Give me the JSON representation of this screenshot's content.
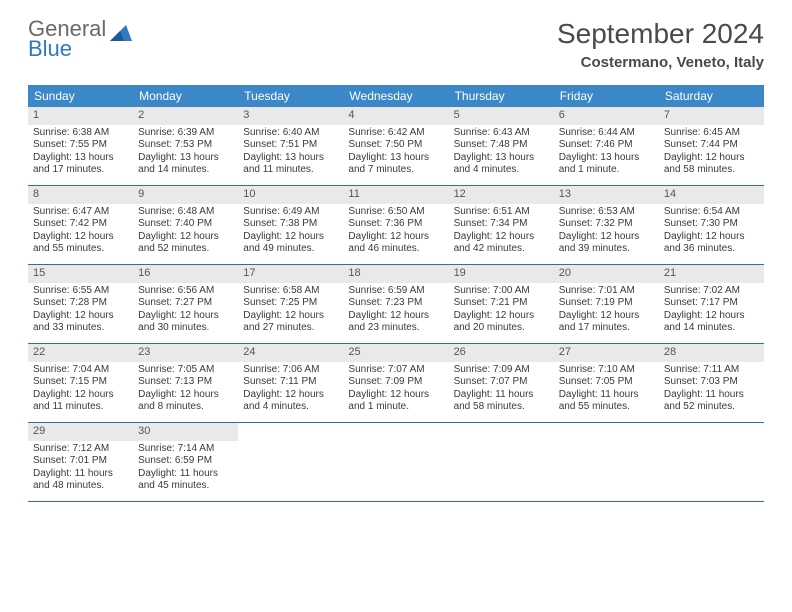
{
  "logo": {
    "line1": "General",
    "line2": "Blue"
  },
  "title": "September 2024",
  "location": "Costermano, Veneto, Italy",
  "colors": {
    "header_bg": "#3b87c8",
    "header_text": "#ffffff",
    "daynum_bg": "#e9e9e9",
    "week_border": "#2f6fa8",
    "logo_gray": "#6a6a6a",
    "logo_blue": "#2f7ac0",
    "body_text": "#3a3a3a"
  },
  "day_names": [
    "Sunday",
    "Monday",
    "Tuesday",
    "Wednesday",
    "Thursday",
    "Friday",
    "Saturday"
  ],
  "days": [
    {
      "n": "1",
      "sr": "6:38 AM",
      "ss": "7:55 PM",
      "dl": "13 hours and 17 minutes."
    },
    {
      "n": "2",
      "sr": "6:39 AM",
      "ss": "7:53 PM",
      "dl": "13 hours and 14 minutes."
    },
    {
      "n": "3",
      "sr": "6:40 AM",
      "ss": "7:51 PM",
      "dl": "13 hours and 11 minutes."
    },
    {
      "n": "4",
      "sr": "6:42 AM",
      "ss": "7:50 PM",
      "dl": "13 hours and 7 minutes."
    },
    {
      "n": "5",
      "sr": "6:43 AM",
      "ss": "7:48 PM",
      "dl": "13 hours and 4 minutes."
    },
    {
      "n": "6",
      "sr": "6:44 AM",
      "ss": "7:46 PM",
      "dl": "13 hours and 1 minute."
    },
    {
      "n": "7",
      "sr": "6:45 AM",
      "ss": "7:44 PM",
      "dl": "12 hours and 58 minutes."
    },
    {
      "n": "8",
      "sr": "6:47 AM",
      "ss": "7:42 PM",
      "dl": "12 hours and 55 minutes."
    },
    {
      "n": "9",
      "sr": "6:48 AM",
      "ss": "7:40 PM",
      "dl": "12 hours and 52 minutes."
    },
    {
      "n": "10",
      "sr": "6:49 AM",
      "ss": "7:38 PM",
      "dl": "12 hours and 49 minutes."
    },
    {
      "n": "11",
      "sr": "6:50 AM",
      "ss": "7:36 PM",
      "dl": "12 hours and 46 minutes."
    },
    {
      "n": "12",
      "sr": "6:51 AM",
      "ss": "7:34 PM",
      "dl": "12 hours and 42 minutes."
    },
    {
      "n": "13",
      "sr": "6:53 AM",
      "ss": "7:32 PM",
      "dl": "12 hours and 39 minutes."
    },
    {
      "n": "14",
      "sr": "6:54 AM",
      "ss": "7:30 PM",
      "dl": "12 hours and 36 minutes."
    },
    {
      "n": "15",
      "sr": "6:55 AM",
      "ss": "7:28 PM",
      "dl": "12 hours and 33 minutes."
    },
    {
      "n": "16",
      "sr": "6:56 AM",
      "ss": "7:27 PM",
      "dl": "12 hours and 30 minutes."
    },
    {
      "n": "17",
      "sr": "6:58 AM",
      "ss": "7:25 PM",
      "dl": "12 hours and 27 minutes."
    },
    {
      "n": "18",
      "sr": "6:59 AM",
      "ss": "7:23 PM",
      "dl": "12 hours and 23 minutes."
    },
    {
      "n": "19",
      "sr": "7:00 AM",
      "ss": "7:21 PM",
      "dl": "12 hours and 20 minutes."
    },
    {
      "n": "20",
      "sr": "7:01 AM",
      "ss": "7:19 PM",
      "dl": "12 hours and 17 minutes."
    },
    {
      "n": "21",
      "sr": "7:02 AM",
      "ss": "7:17 PM",
      "dl": "12 hours and 14 minutes."
    },
    {
      "n": "22",
      "sr": "7:04 AM",
      "ss": "7:15 PM",
      "dl": "12 hours and 11 minutes."
    },
    {
      "n": "23",
      "sr": "7:05 AM",
      "ss": "7:13 PM",
      "dl": "12 hours and 8 minutes."
    },
    {
      "n": "24",
      "sr": "7:06 AM",
      "ss": "7:11 PM",
      "dl": "12 hours and 4 minutes."
    },
    {
      "n": "25",
      "sr": "7:07 AM",
      "ss": "7:09 PM",
      "dl": "12 hours and 1 minute."
    },
    {
      "n": "26",
      "sr": "7:09 AM",
      "ss": "7:07 PM",
      "dl": "11 hours and 58 minutes."
    },
    {
      "n": "27",
      "sr": "7:10 AM",
      "ss": "7:05 PM",
      "dl": "11 hours and 55 minutes."
    },
    {
      "n": "28",
      "sr": "7:11 AM",
      "ss": "7:03 PM",
      "dl": "11 hours and 52 minutes."
    },
    {
      "n": "29",
      "sr": "7:12 AM",
      "ss": "7:01 PM",
      "dl": "11 hours and 48 minutes."
    },
    {
      "n": "30",
      "sr": "7:14 AM",
      "ss": "6:59 PM",
      "dl": "11 hours and 45 minutes."
    }
  ],
  "labels": {
    "sunrise": "Sunrise: ",
    "sunset": "Sunset: ",
    "daylight": "Daylight: "
  },
  "layout": {
    "start_weekday": 0,
    "total_cells": 35
  }
}
